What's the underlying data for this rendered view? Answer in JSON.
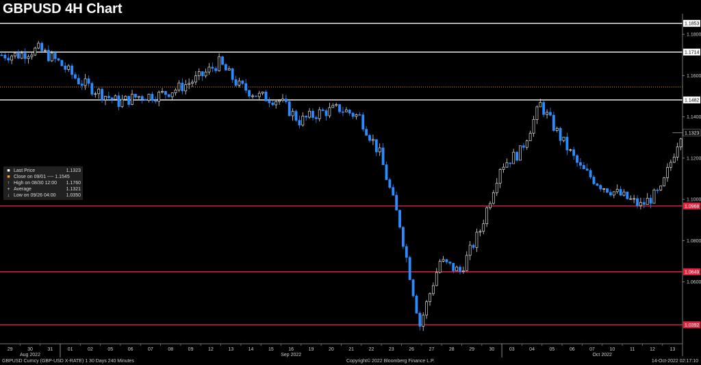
{
  "header": {
    "title": "GBPUSD 4H Chart"
  },
  "legend": {
    "items": [
      {
        "label": "Last Price",
        "value": "1.1323",
        "symbol": "square",
        "color": "#ffffff"
      },
      {
        "label": "Close on 09/01 ---- 1.1545",
        "value": "",
        "symbol": "square",
        "color": "#ff9a2e"
      },
      {
        "label": "High on 08/30 12:00",
        "value": "1.1760",
        "symbol": "arrow-up",
        "color": "#cccccc"
      },
      {
        "label": "Average",
        "value": "1.1321",
        "symbol": "plus",
        "color": "#cccccc"
      },
      {
        "label": "Low on 09/26 04:00",
        "value": "1.0350",
        "symbol": "arrow-down",
        "color": "#cccccc"
      }
    ]
  },
  "footer": {
    "left": "GBPUSD Curncy (GBP-USD X-RATE) 1 30 Days 240 Minutes",
    "center": "Copyright© 2022 Bloomberg Finance L.P.",
    "right": "14-Oct-2022 02:17:10"
  },
  "chart_data": {
    "type": "candlestick",
    "title": "GBPUSD 4H Chart",
    "ylim": [
      1.03,
      1.19
    ],
    "y_ticks": [
      "1.0600",
      "1.0800",
      "1.1000",
      "1.1200",
      "1.1400",
      "1.1600",
      "1.1800"
    ],
    "day_labels": [
      "29",
      "30",
      "31",
      "01",
      "02",
      "05",
      "06",
      "07",
      "08",
      "09",
      "12",
      "13",
      "14",
      "15",
      "16",
      "19",
      "20",
      "21",
      "22",
      "23",
      "26",
      "27",
      "28",
      "29",
      "30",
      "03",
      "04",
      "05",
      "06",
      "07",
      "10",
      "11",
      "12",
      "13"
    ],
    "month_labels": [
      {
        "text": "Aug 2022",
        "day_index": 1
      },
      {
        "text": "Sep 2022",
        "day_index": 14
      },
      {
        "text": "Oct 2022",
        "day_index": 29.5
      }
    ],
    "month_separators_after_day_index": [
      2,
      24
    ],
    "levels": [
      {
        "value": 1.1853,
        "label": "1.1853",
        "style": "white"
      },
      {
        "value": 1.1714,
        "label": "1.1714",
        "style": "white"
      },
      {
        "value": 1.1482,
        "label": "1.1482",
        "style": "white"
      },
      {
        "value": 1.0968,
        "label": "1.0968",
        "style": "red"
      },
      {
        "value": 1.0649,
        "label": "1.0649",
        "style": "red"
      },
      {
        "value": 1.0392,
        "label": "1.0392",
        "style": "red"
      }
    ],
    "reference_line": {
      "value": 1.1545,
      "color": "#ff9a2e"
    },
    "last_price": {
      "value": 1.1323,
      "label": "1.1323"
    },
    "colors": {
      "up": "#e0e0e0",
      "down": "#2b8cff",
      "level_white": "#ffffff",
      "level_red": "#e0223c",
      "axis_text": "#cfcfcf"
    },
    "daily_path": [
      1.17,
      1.1728,
      1.1665,
      1.1575,
      1.152,
      1.147,
      1.15,
      1.1505,
      1.154,
      1.159,
      1.1662,
      1.155,
      1.15,
      1.148,
      1.138,
      1.142,
      1.144,
      1.14,
      1.122,
      1.088,
      1.039,
      1.07,
      1.065,
      1.085,
      1.116,
      1.123,
      1.146,
      1.13,
      1.115,
      1.107,
      1.102,
      1.097,
      1.104,
      1.1323
    ],
    "candles_per_day": 6
  }
}
